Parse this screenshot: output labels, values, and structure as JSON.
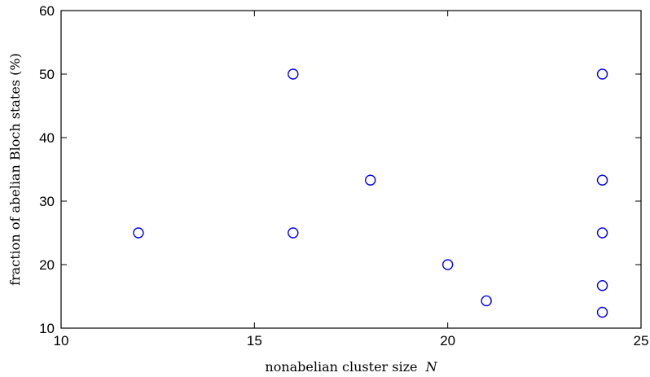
{
  "chart_data": {
    "type": "scatter",
    "xlabel": "nonabelian cluster size",
    "xlabel_var": "N",
    "ylabel": "fraction of abelian Bloch states (%)",
    "xlim": [
      10,
      25
    ],
    "ylim": [
      10,
      60
    ],
    "x_ticks": [
      10,
      15,
      20,
      25
    ],
    "y_ticks": [
      10,
      20,
      30,
      40,
      50,
      60
    ],
    "grid": false,
    "marker": "open-circle",
    "marker_color": "#0000ff",
    "series": [
      {
        "points": [
          {
            "x": 12,
            "y": 25.0
          },
          {
            "x": 16,
            "y": 50.0
          },
          {
            "x": 16,
            "y": 25.0
          },
          {
            "x": 18,
            "y": 33.3
          },
          {
            "x": 20,
            "y": 20.0
          },
          {
            "x": 21,
            "y": 14.3
          },
          {
            "x": 24,
            "y": 50.0
          },
          {
            "x": 24,
            "y": 33.3
          },
          {
            "x": 24,
            "y": 25.0
          },
          {
            "x": 24,
            "y": 16.7
          },
          {
            "x": 24,
            "y": 12.5
          }
        ]
      }
    ]
  }
}
